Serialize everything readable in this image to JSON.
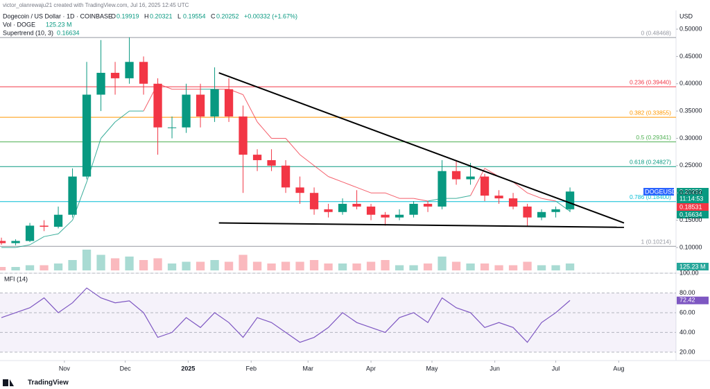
{
  "header": {
    "credit": "victor_olanrewaju21 created with TradingView.com, Jul 16, 2025 12:45 UTC",
    "symbol": "Dogecoin / US Dollar · 1D · COINBASE",
    "ohlc": [
      {
        "key": "O",
        "value": "0.19919"
      },
      {
        "key": "H",
        "value": "0.20321"
      },
      {
        "key": "L",
        "value": "0.19554"
      },
      {
        "key": "C",
        "value": "0.20252"
      }
    ],
    "change": "+0.00332 (+1.67%)",
    "volume_label": "Vol · DOGE",
    "volume_value": "125.23 M",
    "supertrend_label": "Supertrend (10, 3)",
    "supertrend_value": "0.16634",
    "currency": "USD"
  },
  "badges": {
    "symbol": "DOGEUSD",
    "price": "0.20252",
    "countdown": "11:14:53",
    "level": "0.18531",
    "supertrend": "0.16634",
    "volume": "125.23 M",
    "mfi": "72.42"
  },
  "footer": {
    "brand": "TradingView"
  },
  "chart_data": [
    {
      "type": "candlestick",
      "xlim": [
        -0.1,
        47.46
      ],
      "ylim": [
        0.058,
        0.528
      ],
      "xticks": [
        {
          "value": 4.43,
          "label": "Nov"
        },
        {
          "value": 8.71,
          "label": "Dec"
        },
        {
          "value": 13.14,
          "label": "2025"
        },
        {
          "value": 17.57,
          "label": "Feb"
        },
        {
          "value": 21.57,
          "label": "Mar"
        },
        {
          "value": 26,
          "label": "Apr"
        },
        {
          "value": 30.29,
          "label": "May"
        },
        {
          "value": 34.71,
          "label": "Jun"
        },
        {
          "value": 39,
          "label": "Jul"
        },
        {
          "value": 43.43,
          "label": "Aug"
        }
      ],
      "yticks": [
        {
          "value": 0.1,
          "label": "0.10000"
        },
        {
          "value": 0.15,
          "label": "0.15000"
        },
        {
          "value": 0.2,
          "label": "0.20000"
        },
        {
          "value": 0.25,
          "label": "0.25000"
        },
        {
          "value": 0.3,
          "label": "0.30000"
        },
        {
          "value": 0.35,
          "label": "0.35000"
        },
        {
          "value": 0.4,
          "label": "0.40000"
        },
        {
          "value": 0.45,
          "label": "0.45000"
        },
        {
          "value": 0.5,
          "label": "0.50000"
        }
      ],
      "up_color": "#089981",
      "down_color": "#f23645",
      "open": [
        0.112,
        0.108,
        0.112,
        0.14,
        0.138,
        0.16,
        0.23,
        0.38,
        0.42,
        0.41,
        0.44,
        0.4,
        0.32,
        0.32,
        0.38,
        0.34,
        0.39,
        0.34,
        0.27,
        0.26,
        0.25,
        0.21,
        0.2,
        0.17,
        0.165,
        0.18,
        0.175,
        0.16,
        0.155,
        0.16,
        0.18,
        0.175,
        0.24,
        0.225,
        0.23,
        0.195,
        0.19,
        0.175,
        0.155,
        0.165,
        0.17
      ],
      "high": [
        0.118,
        0.115,
        0.145,
        0.15,
        0.175,
        0.245,
        0.44,
        0.48,
        0.44,
        0.485,
        0.45,
        0.41,
        0.34,
        0.4,
        0.4,
        0.43,
        0.41,
        0.36,
        0.28,
        0.28,
        0.26,
        0.23,
        0.21,
        0.18,
        0.19,
        0.205,
        0.18,
        0.165,
        0.17,
        0.185,
        0.185,
        0.26,
        0.26,
        0.255,
        0.235,
        0.205,
        0.2,
        0.18,
        0.17,
        0.175,
        0.21
      ],
      "low": [
        0.105,
        0.104,
        0.11,
        0.13,
        0.135,
        0.155,
        0.225,
        0.35,
        0.38,
        0.4,
        0.38,
        0.27,
        0.3,
        0.31,
        0.32,
        0.33,
        0.33,
        0.2,
        0.24,
        0.24,
        0.2,
        0.18,
        0.16,
        0.155,
        0.16,
        0.17,
        0.15,
        0.14,
        0.15,
        0.155,
        0.165,
        0.17,
        0.215,
        0.215,
        0.185,
        0.18,
        0.17,
        0.14,
        0.15,
        0.155,
        0.165
      ],
      "close": [
        0.108,
        0.112,
        0.14,
        0.138,
        0.16,
        0.23,
        0.38,
        0.42,
        0.41,
        0.44,
        0.4,
        0.32,
        0.32,
        0.38,
        0.34,
        0.39,
        0.34,
        0.27,
        0.26,
        0.25,
        0.21,
        0.2,
        0.17,
        0.165,
        0.18,
        0.175,
        0.16,
        0.155,
        0.16,
        0.18,
        0.175,
        0.24,
        0.225,
        0.23,
        0.195,
        0.19,
        0.175,
        0.155,
        0.165,
        0.17,
        0.20252
      ],
      "volume": [
        2,
        2,
        3,
        3,
        4,
        6,
        12,
        9,
        7,
        8,
        6,
        7,
        4,
        5,
        5,
        6,
        5,
        9,
        5,
        4,
        5,
        5,
        6,
        4,
        4,
        4,
        5,
        6,
        3,
        3,
        4,
        8,
        5,
        4,
        4,
        3,
        3,
        5,
        3,
        3,
        4
      ],
      "supertrend": [
        0.1,
        0.1,
        0.105,
        0.12,
        0.125,
        0.15,
        0.22,
        0.3,
        0.33,
        0.35,
        0.35,
        0.4,
        0.39,
        0.39,
        0.39,
        0.39,
        0.39,
        0.38,
        0.33,
        0.3,
        0.3,
        0.27,
        0.25,
        0.23,
        0.22,
        0.21,
        0.2,
        0.2,
        0.19,
        0.19,
        0.185,
        0.19,
        0.19,
        0.195,
        0.245,
        0.23,
        0.22,
        0.2,
        0.19,
        0.185,
        0.16634
      ],
      "levels": [
        {
          "value": 0.48468,
          "label": "0 (0.48468)",
          "color": "#9598a1"
        },
        {
          "value": 0.3944,
          "label": "0.236 (0.39440)",
          "color": "#f23645"
        },
        {
          "value": 0.33855,
          "label": "0.382 (0.33855)",
          "color": "#ff9800"
        },
        {
          "value": 0.29341,
          "label": "0.5 (0.29341)",
          "color": "#4caf50"
        },
        {
          "value": 0.24827,
          "label": "0.618 (0.24827)",
          "color": "#089981"
        },
        {
          "value": 0.184,
          "label": "0.786 (0.18400)",
          "color": "#00bcd4"
        },
        {
          "value": 0.10214,
          "label": "1 (0.10214)",
          "color": "#9598a1"
        }
      ],
      "trendlines": [
        {
          "x": [
            15.3,
            43.8
          ],
          "y": [
            0.42,
            0.145
          ]
        },
        {
          "x": [
            15.3,
            43.8
          ],
          "y": [
            0.145,
            0.137
          ]
        }
      ]
    },
    {
      "type": "line",
      "title": "MFI (14)",
      "color": "#7e57c2",
      "ylim": [
        15,
        100
      ],
      "yticks": [
        {
          "value": 20,
          "label": "20.00"
        },
        {
          "value": 40,
          "label": "40.00"
        },
        {
          "value": 60,
          "label": "60.00"
        },
        {
          "value": 80,
          "label": "80.00"
        },
        {
          "value": 100,
          "label": "100.00"
        }
      ],
      "values": [
        55,
        60,
        65,
        75,
        60,
        70,
        85,
        75,
        70,
        72,
        60,
        35,
        40,
        55,
        45,
        60,
        50,
        35,
        55,
        50,
        40,
        30,
        35,
        45,
        60,
        50,
        45,
        40,
        55,
        60,
        50,
        75,
        65,
        60,
        45,
        50,
        45,
        30,
        50,
        60,
        72.42
      ],
      "value_labels": [
        null,
        null,
        null,
        null,
        null,
        null,
        null,
        null,
        null,
        null,
        null,
        null,
        null,
        null,
        null,
        null,
        null,
        null,
        null,
        null,
        null,
        null,
        null,
        null,
        null,
        null,
        null,
        null,
        null,
        null,
        null,
        null,
        null,
        null,
        null,
        null,
        null,
        null,
        null,
        null,
        "72.42"
      ]
    }
  ]
}
